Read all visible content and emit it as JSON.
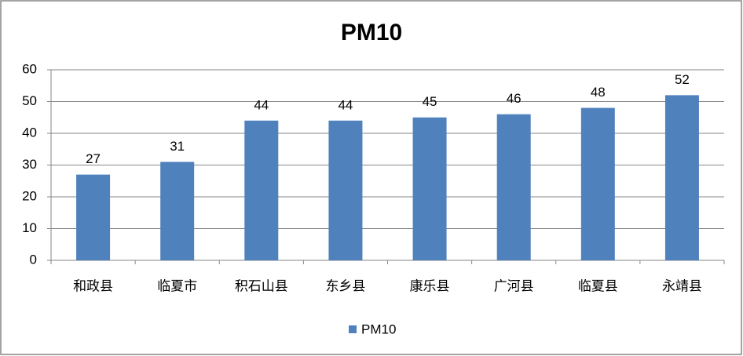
{
  "chart_data": {
    "type": "bar",
    "title": "PM10",
    "categories": [
      "和政县",
      "临夏市",
      "积石山县",
      "东乡县",
      "康乐县",
      "广河县",
      "临夏县",
      "永靖县"
    ],
    "series": [
      {
        "name": "PM10",
        "color": "#4f81bd",
        "values": [
          27,
          31,
          44,
          44,
          45,
          46,
          48,
          52
        ]
      }
    ],
    "ylim": [
      0,
      60
    ],
    "yticks": [
      0,
      10,
      20,
      30,
      40,
      50,
      60
    ],
    "grid": true,
    "legend": "bottom"
  }
}
